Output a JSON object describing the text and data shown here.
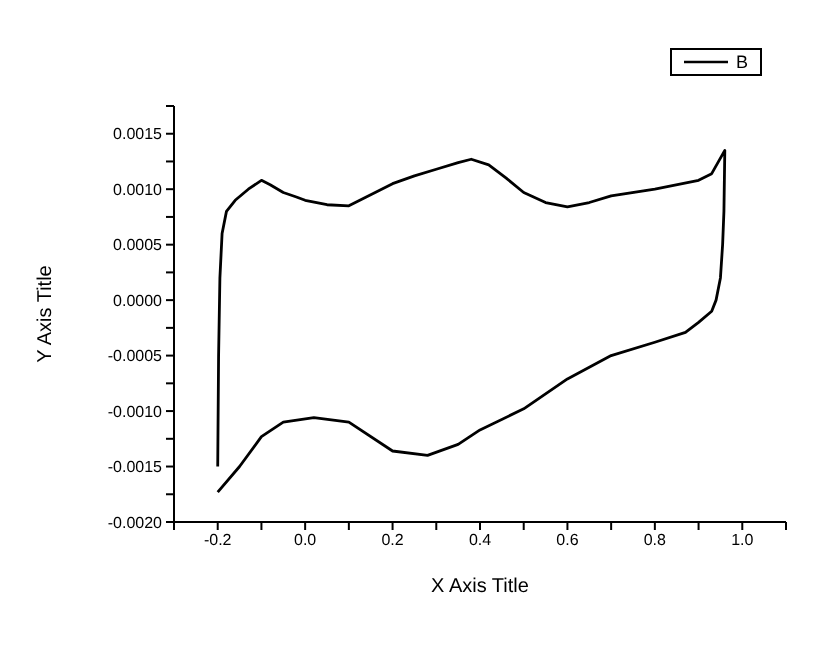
{
  "chart_data": {
    "type": "line",
    "xlabel": "X Axis Title",
    "ylabel": "Y Axis Title",
    "xlim": [
      -0.3,
      1.1
    ],
    "xticks": [
      {
        "value": -0.3,
        "label": null
      },
      {
        "value": -0.2,
        "label": "-0.2"
      },
      {
        "value": -0.1,
        "label": null
      },
      {
        "value": 0,
        "label": "0.0"
      },
      {
        "value": 0.1,
        "label": null
      },
      {
        "value": 0.2,
        "label": "0.2"
      },
      {
        "value": 0.3,
        "label": null
      },
      {
        "value": 0.4,
        "label": "0.4"
      },
      {
        "value": 0.5,
        "label": null
      },
      {
        "value": 0.6,
        "label": "0.6"
      },
      {
        "value": 0.7,
        "label": null
      },
      {
        "value": 0.8,
        "label": "0.8"
      },
      {
        "value": 0.9,
        "label": null
      },
      {
        "value": 1.0,
        "label": "1.0"
      },
      {
        "value": 1.1,
        "label": null
      }
    ],
    "ylim": [
      -0.002,
      0.00175
    ],
    "yticks": [
      {
        "value": -0.002,
        "label": "-0.0020"
      },
      {
        "value": -0.00175,
        "label": null
      },
      {
        "value": -0.0015,
        "label": "-0.0015"
      },
      {
        "value": -0.00125,
        "label": null
      },
      {
        "value": -0.001,
        "label": "-0.0010"
      },
      {
        "value": -0.00075,
        "label": null
      },
      {
        "value": -0.0005,
        "label": "-0.0005"
      },
      {
        "value": -0.00025,
        "label": null
      },
      {
        "value": 0,
        "label": "0.0000"
      },
      {
        "value": 0.00025,
        "label": null
      },
      {
        "value": 0.0005,
        "label": "0.0005"
      },
      {
        "value": 0.00075,
        "label": null
      },
      {
        "value": 0.001,
        "label": "0.0010"
      },
      {
        "value": 0.00125,
        "label": null
      },
      {
        "value": 0.0015,
        "label": "0.0015"
      },
      {
        "value": 0.00175,
        "label": null
      }
    ],
    "grid": false,
    "legend": "top right",
    "marker": "none",
    "line_style": "solid",
    "series": [
      {
        "name": "B",
        "color": "#000000",
        "x": [
          -0.2,
          -0.198,
          -0.195,
          -0.19,
          -0.18,
          -0.16,
          -0.13,
          -0.1,
          -0.08,
          -0.05,
          -0.02,
          0.0,
          0.05,
          0.1,
          0.15,
          0.2,
          0.25,
          0.3,
          0.35,
          0.38,
          0.42,
          0.46,
          0.5,
          0.55,
          0.6,
          0.65,
          0.7,
          0.8,
          0.9,
          0.93,
          0.96,
          0.958,
          0.955,
          0.95,
          0.94,
          0.93,
          0.9,
          0.87,
          0.8,
          0.7,
          0.6,
          0.5,
          0.4,
          0.35,
          0.28,
          0.2,
          0.1,
          0.02,
          -0.05,
          -0.1,
          -0.15,
          -0.2
        ],
        "values": [
          -0.0015,
          -0.0005,
          0.0002,
          0.0006,
          0.0008,
          0.0009,
          0.001,
          0.00108,
          0.00104,
          0.00097,
          0.00093,
          0.0009,
          0.00086,
          0.00085,
          0.00095,
          0.00105,
          0.00112,
          0.00118,
          0.00124,
          0.00127,
          0.00122,
          0.0011,
          0.00097,
          0.00088,
          0.00084,
          0.00088,
          0.00094,
          0.001,
          0.00108,
          0.00114,
          0.00135,
          0.0008,
          0.0005,
          0.0002,
          0.0,
          -0.0001,
          -0.0002,
          -0.00029,
          -0.00038,
          -0.0005,
          -0.00071,
          -0.00098,
          -0.00117,
          -0.0013,
          -0.0014,
          -0.00136,
          -0.0011,
          -0.00106,
          -0.0011,
          -0.00123,
          -0.0015,
          -0.00173
        ]
      }
    ]
  }
}
